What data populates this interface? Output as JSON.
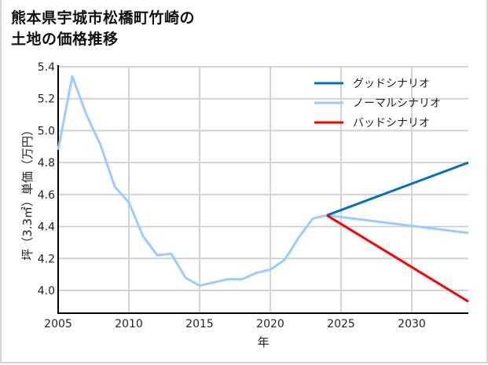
{
  "title": {
    "line1": "熊本県宇城市松橋町竹崎の",
    "line2": "土地の価格推移"
  },
  "chart_data": {
    "type": "line",
    "title": "熊本県宇城市松橋町竹崎の土地の価格推移",
    "xlabel": "年",
    "ylabel": "坪（3.3㎡）単価（万円）",
    "xlim": [
      2005,
      2034
    ],
    "ylim": [
      3.85,
      5.4
    ],
    "x_ticks": [
      2005,
      2010,
      2015,
      2020,
      2025,
      2030
    ],
    "y_ticks": [
      4.0,
      4.2,
      4.4,
      4.6,
      4.8,
      5.0,
      5.2,
      5.4
    ],
    "y_tick_labels": [
      "4.0",
      "4.2",
      "4.4",
      "4.6",
      "4.8",
      "5.0",
      "5.2",
      "5.4"
    ],
    "grid": true,
    "legend_position": "upper right",
    "series": [
      {
        "name": "グッドシナリオ",
        "color": "#0070c0",
        "x": [
          2024,
          2034
        ],
        "values": [
          4.47,
          4.8
        ]
      },
      {
        "name": "ノーマルシナリオ",
        "color": "#99ccff",
        "x": [
          2005,
          2006,
          2007,
          2008,
          2009,
          2010,
          2011,
          2012,
          2013,
          2014,
          2015,
          2016,
          2017,
          2018,
          2019,
          2020,
          2021,
          2022,
          2023,
          2024,
          2034
        ],
        "values": [
          4.88,
          5.34,
          5.1,
          4.91,
          4.65,
          4.55,
          4.34,
          4.22,
          4.23,
          4.08,
          4.03,
          4.05,
          4.07,
          4.07,
          4.11,
          4.13,
          4.19,
          4.33,
          4.45,
          4.47,
          4.36
        ]
      },
      {
        "name": "バッドシナリオ",
        "color": "#ff0000",
        "x": [
          2024,
          2034
        ],
        "values": [
          4.47,
          3.93
        ]
      }
    ]
  }
}
